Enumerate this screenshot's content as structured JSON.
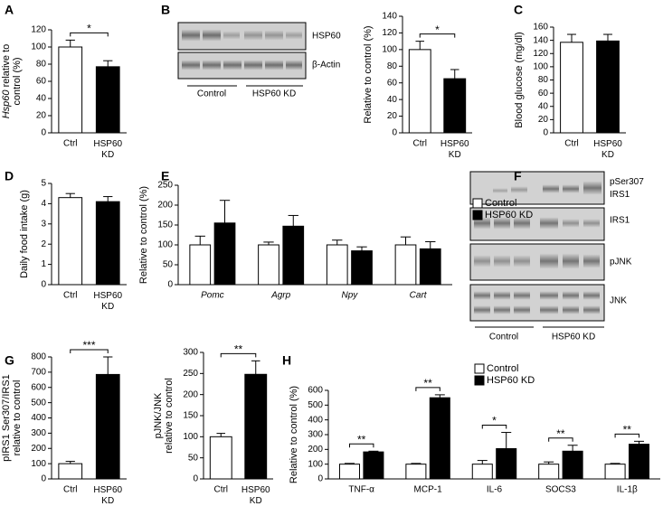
{
  "chart_data": [
    {
      "type": "bar",
      "panel": "A",
      "ylabel": [
        "Hsp60 relative to",
        "control (%)"
      ],
      "categories": [
        "Ctrl",
        "HSP60 KD"
      ],
      "values": [
        100,
        77
      ],
      "errors": [
        8,
        7
      ],
      "colors": [
        "#ffffff",
        "#000000"
      ],
      "ylim": [
        0,
        120
      ],
      "yticks": [
        0,
        20,
        40,
        60,
        80,
        100,
        120
      ],
      "significance": "*"
    },
    {
      "type": "bar",
      "ylabel": [
        "Relative to control (%)"
      ],
      "categories": [
        "Ctrl",
        "HSP60 KD"
      ],
      "values": [
        100,
        65
      ],
      "errors": [
        10,
        11
      ],
      "colors": [
        "#ffffff",
        "#000000"
      ],
      "ylim": [
        0,
        140
      ],
      "yticks": [
        0,
        20,
        40,
        60,
        80,
        100,
        120,
        140
      ],
      "significance": "*"
    },
    {
      "type": "bar",
      "panel": "C",
      "ylabel": [
        "Blood glucose (mg/dl)"
      ],
      "categories": [
        "Ctrl",
        "HSP60 KD"
      ],
      "values": [
        137,
        139
      ],
      "errors": [
        12,
        10
      ],
      "colors": [
        "#ffffff",
        "#000000"
      ],
      "ylim": [
        0,
        160
      ],
      "yticks": [
        0,
        20,
        40,
        60,
        80,
        100,
        120,
        140,
        160
      ]
    },
    {
      "type": "bar",
      "panel": "D",
      "ylabel": [
        "Daily food intake (g)"
      ],
      "categories": [
        "Ctrl",
        "HSP60 KD"
      ],
      "values": [
        4.3,
        4.1
      ],
      "errors": [
        0.2,
        0.25
      ],
      "colors": [
        "#ffffff",
        "#000000"
      ],
      "ylim": [
        0,
        5
      ],
      "yticks": [
        0,
        1,
        2,
        3,
        4,
        5
      ]
    },
    {
      "type": "grouped_bar",
      "panel": "E",
      "ylabel": [
        "Relative to control (%)"
      ],
      "categories": [
        "Pomc",
        "Agrp",
        "Npy",
        "Cart"
      ],
      "series": [
        {
          "name": "Control",
          "color": "#ffffff",
          "values": [
            100,
            100,
            100,
            100
          ],
          "errors": [
            22,
            7,
            12,
            20
          ]
        },
        {
          "name": "HSP60 KD",
          "color": "#000000",
          "values": [
            155,
            147,
            85,
            90
          ],
          "errors": [
            57,
            27,
            10,
            18
          ]
        }
      ],
      "ylim": [
        0,
        250
      ],
      "yticks": [
        0,
        50,
        100,
        150,
        200,
        250
      ]
    },
    {
      "type": "bar",
      "panel": "G",
      "ylabel": [
        "pIRS1 Ser307/IRS1",
        "relative to  control"
      ],
      "categories": [
        "Ctrl",
        "HSP60 KD"
      ],
      "values": [
        100,
        685
      ],
      "errors": [
        15,
        115
      ],
      "colors": [
        "#ffffff",
        "#000000"
      ],
      "ylim": [
        0,
        800
      ],
      "yticks": [
        0,
        100,
        200,
        300,
        400,
        500,
        600,
        700,
        800
      ],
      "significance": "***"
    },
    {
      "type": "bar",
      "ylabel": [
        "pJNK/JNK",
        "relative to  control"
      ],
      "categories": [
        "Ctrl",
        "HSP60 KD"
      ],
      "values": [
        100,
        248
      ],
      "errors": [
        8,
        32
      ],
      "colors": [
        "#ffffff",
        "#000000"
      ],
      "ylim": [
        0,
        300
      ],
      "yticks": [
        0,
        50,
        100,
        150,
        200,
        250,
        300
      ],
      "significance": "**"
    },
    {
      "type": "grouped_bar",
      "panel": "H",
      "ylabel": [
        "Relative to control (%)"
      ],
      "categories": [
        "TNF-α",
        "MCP-1",
        "IL-6",
        "SOCS3",
        "IL-1β"
      ],
      "series": [
        {
          "name": "Control",
          "color": "#ffffff",
          "values": [
            100,
            100,
            100,
            100,
            100
          ],
          "errors": [
            5,
            5,
            25,
            15,
            5
          ]
        },
        {
          "name": "HSP60 KD",
          "color": "#000000",
          "values": [
            183,
            550,
            205,
            188,
            235
          ],
          "errors": [
            5,
            20,
            110,
            40,
            20
          ]
        }
      ],
      "ylim": [
        0,
        600
      ],
      "yticks": [
        0,
        100,
        200,
        300,
        400,
        500,
        600
      ],
      "significance": [
        "**",
        "**",
        "*",
        "**",
        "**"
      ]
    }
  ],
  "blots": {
    "B": {
      "panel": "B",
      "bands": [
        "HSP60",
        "β-Actin"
      ],
      "groups": [
        "Control",
        "HSP60 KD"
      ]
    },
    "F": {
      "panel": "F",
      "bands": [
        "pSer307 IRS1",
        "IRS1",
        "pJNK",
        "JNK"
      ],
      "groups": [
        "Control",
        "HSP60 KD"
      ]
    }
  }
}
